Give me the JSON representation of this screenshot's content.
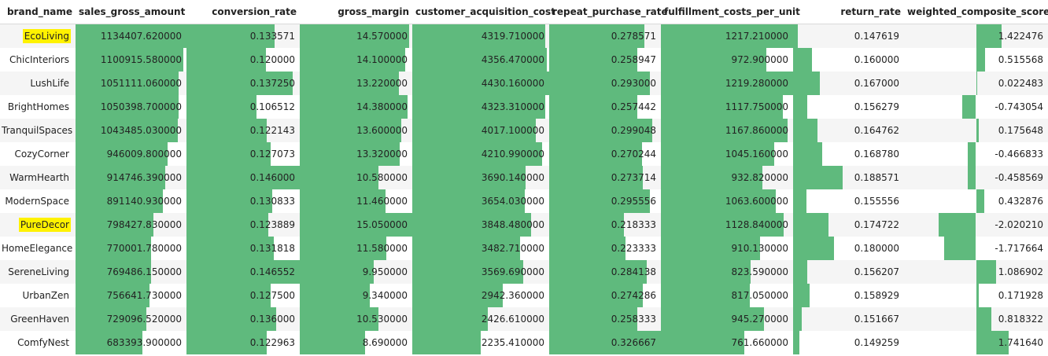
{
  "columns": [
    {
      "key": "brand_name",
      "label": "brand_name"
    },
    {
      "key": "sales_gross_amount",
      "label": "sales_gross_amount"
    },
    {
      "key": "conversion_rate",
      "label": "conversion_rate"
    },
    {
      "key": "gross_margin",
      "label": "gross_margin"
    },
    {
      "key": "customer_acquisition_cost",
      "label": "customer_acquisition_cost"
    },
    {
      "key": "repeat_purchase_rate",
      "label": "repeat_purchase_rate"
    },
    {
      "key": "fulfillment_costs_per_unit",
      "label": "fulfillment_costs_per_unit"
    },
    {
      "key": "return_rate",
      "label": "return_rate"
    },
    {
      "key": "weighted_composite_score",
      "label": "weighted_composite_score"
    }
  ],
  "colors": {
    "bar": "#5fba7d",
    "highlight": "#fff200"
  },
  "rows": [
    {
      "brand_name": "EcoLiving",
      "highlight": true,
      "values": [
        "1134407.620000",
        "0.133571",
        "14.570000",
        "4319.710000",
        "0.278571",
        "1217.210000",
        "0.147619",
        "1.422476"
      ],
      "bars": [
        1.0,
        0.78,
        0.97,
        0.97,
        0.85,
        1.0,
        0.04,
        0.36
      ]
    },
    {
      "brand_name": "ChicInteriors",
      "highlight": false,
      "values": [
        "1100915.580000",
        "0.120000",
        "14.100000",
        "4356.470000",
        "0.258947",
        "972.900000",
        "0.160000",
        "0.515568"
      ],
      "bars": [
        0.97,
        0.7,
        0.94,
        0.98,
        0.79,
        0.8,
        0.17,
        0.13
      ]
    },
    {
      "brand_name": "LushLife",
      "highlight": false,
      "values": [
        "1051111.060000",
        "0.137250",
        "13.220000",
        "4430.160000",
        "0.293000",
        "1219.280000",
        "0.167000",
        "0.022483"
      ],
      "bars": [
        0.93,
        0.94,
        0.88,
        1.0,
        0.9,
        1.0,
        0.24,
        0.01
      ]
    },
    {
      "brand_name": "BrightHomes",
      "highlight": false,
      "values": [
        "1050398.700000",
        "0.106512",
        "14.380000",
        "4323.310000",
        "0.257442",
        "1117.750000",
        "0.156279",
        "-0.743054"
      ],
      "bars": [
        0.93,
        0.62,
        0.96,
        0.97,
        0.79,
        0.92,
        0.13,
        -0.19
      ]
    },
    {
      "brand_name": "TranquilSpaces",
      "highlight": false,
      "values": [
        "1043485.030000",
        "0.122143",
        "13.600000",
        "4017.100000",
        "0.299048",
        "1167.860000",
        "0.164762",
        "0.175648"
      ],
      "bars": [
        0.92,
        0.71,
        0.9,
        0.9,
        0.92,
        0.96,
        0.22,
        0.04
      ]
    },
    {
      "brand_name": "CozyCorner",
      "highlight": false,
      "values": [
        "946009.800000",
        "0.127073",
        "13.320000",
        "4210.990000",
        "0.270244",
        "1045.160000",
        "0.168780",
        "-0.466833"
      ],
      "bars": [
        0.83,
        0.74,
        0.89,
        0.95,
        0.83,
        0.86,
        0.26,
        -0.12
      ]
    },
    {
      "brand_name": "WarmHearth",
      "highlight": false,
      "values": [
        "914746.390000",
        "0.146000",
        "10.580000",
        "3690.140000",
        "0.273714",
        "932.820000",
        "0.188571",
        "-0.458569"
      ],
      "bars": [
        0.81,
        1.0,
        0.7,
        0.83,
        0.84,
        0.77,
        0.45,
        -0.11
      ]
    },
    {
      "brand_name": "ModernSpace",
      "highlight": false,
      "values": [
        "891140.930000",
        "0.130833",
        "11.460000",
        "3654.030000",
        "0.295556",
        "1063.600000",
        "0.155556",
        "0.432876"
      ],
      "bars": [
        0.79,
        0.76,
        0.76,
        0.82,
        0.9,
        0.87,
        0.12,
        0.11
      ]
    },
    {
      "brand_name": "PureDecor",
      "highlight": true,
      "values": [
        "798427.830000",
        "0.123889",
        "15.050000",
        "3848.480000",
        "0.218333",
        "1128.840000",
        "0.174722",
        "-2.020210"
      ],
      "bars": [
        0.7,
        0.72,
        1.0,
        0.87,
        0.67,
        0.93,
        0.32,
        -0.52
      ]
    },
    {
      "brand_name": "HomeElegance",
      "highlight": false,
      "values": [
        "770001.780000",
        "0.131818",
        "11.580000",
        "3482.710000",
        "0.223333",
        "910.130000",
        "0.180000",
        "-1.717664"
      ],
      "bars": [
        0.68,
        0.77,
        0.77,
        0.79,
        0.68,
        0.75,
        0.37,
        -0.44
      ]
    },
    {
      "brand_name": "SereneLiving",
      "highlight": false,
      "values": [
        "769486.150000",
        "0.146552",
        "9.950000",
        "3569.690000",
        "0.284138",
        "823.590000",
        "0.156207",
        "1.086902"
      ],
      "bars": [
        0.68,
        1.0,
        0.66,
        0.81,
        0.87,
        0.68,
        0.13,
        0.28
      ]
    },
    {
      "brand_name": "UrbanZen",
      "highlight": false,
      "values": [
        "756641.730000",
        "0.127500",
        "9.340000",
        "2942.360000",
        "0.274286",
        "817.050000",
        "0.158929",
        "0.171928"
      ],
      "bars": [
        0.67,
        0.74,
        0.62,
        0.66,
        0.84,
        0.67,
        0.15,
        0.04
      ]
    },
    {
      "brand_name": "GreenHaven",
      "highlight": false,
      "values": [
        "729096.520000",
        "0.136000",
        "10.530000",
        "2426.610000",
        "0.258333",
        "945.270000",
        "0.151667",
        "0.818322"
      ],
      "bars": [
        0.64,
        0.79,
        0.7,
        0.55,
        0.79,
        0.78,
        0.08,
        0.21
      ]
    },
    {
      "brand_name": "ComfyNest",
      "highlight": false,
      "values": [
        "683393.900000",
        "0.122963",
        "8.690000",
        "2235.410000",
        "0.326667",
        "761.660000",
        "0.149259",
        "1.741640"
      ],
      "bars": [
        0.6,
        0.71,
        0.58,
        0.5,
        1.0,
        0.63,
        0.06,
        0.45
      ]
    }
  ]
}
